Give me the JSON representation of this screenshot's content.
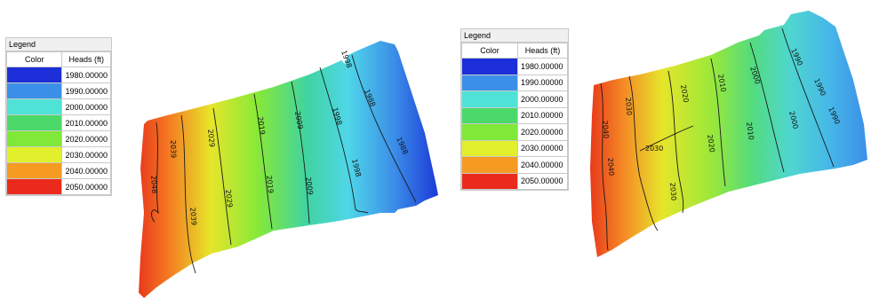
{
  "legend_left": {
    "title": "Legend",
    "col_color": "Color",
    "col_heads": "Heads (ft)",
    "rows": [
      {
        "value": "1980.00000",
        "color": "#1c2fd8"
      },
      {
        "value": "1990.00000",
        "color": "#3c8fe8"
      },
      {
        "value": "2000.00000",
        "color": "#4fe3d8"
      },
      {
        "value": "2010.00000",
        "color": "#4bd96a"
      },
      {
        "value": "2020.00000",
        "color": "#7fe838"
      },
      {
        "value": "2030.00000",
        "color": "#e2ef2c"
      },
      {
        "value": "2040.00000",
        "color": "#f59b22"
      },
      {
        "value": "2050.00000",
        "color": "#ea2a1c"
      }
    ]
  },
  "legend_right": {
    "title": "Legend",
    "col_color": "Color",
    "col_heads": "Heads (ft)",
    "rows": [
      {
        "value": "1980.00000",
        "color": "#1c2fd8"
      },
      {
        "value": "1990.00000",
        "color": "#3c8fe8"
      },
      {
        "value": "2000.00000",
        "color": "#4fe3d8"
      },
      {
        "value": "2010.00000",
        "color": "#4bd96a"
      },
      {
        "value": "2020.00000",
        "color": "#7fe838"
      },
      {
        "value": "2030.00000",
        "color": "#e2ef2c"
      },
      {
        "value": "2040.00000",
        "color": "#f59b22"
      },
      {
        "value": "2050.00000",
        "color": "#ea2a1c"
      }
    ]
  },
  "map_left": {
    "contour_labels": [
      "2048",
      "2039",
      "2039",
      "2029",
      "2029",
      "2019",
      "2019",
      "2009",
      "2009",
      "1998",
      "1998",
      "1988",
      "1988",
      "1998"
    ]
  },
  "map_right": {
    "contour_labels": [
      "2040",
      "2030",
      "2040",
      "2030",
      "2030",
      "2020",
      "2020",
      "2010",
      "2010",
      "2000",
      "2000",
      "1990",
      "1990",
      "1990"
    ]
  }
}
